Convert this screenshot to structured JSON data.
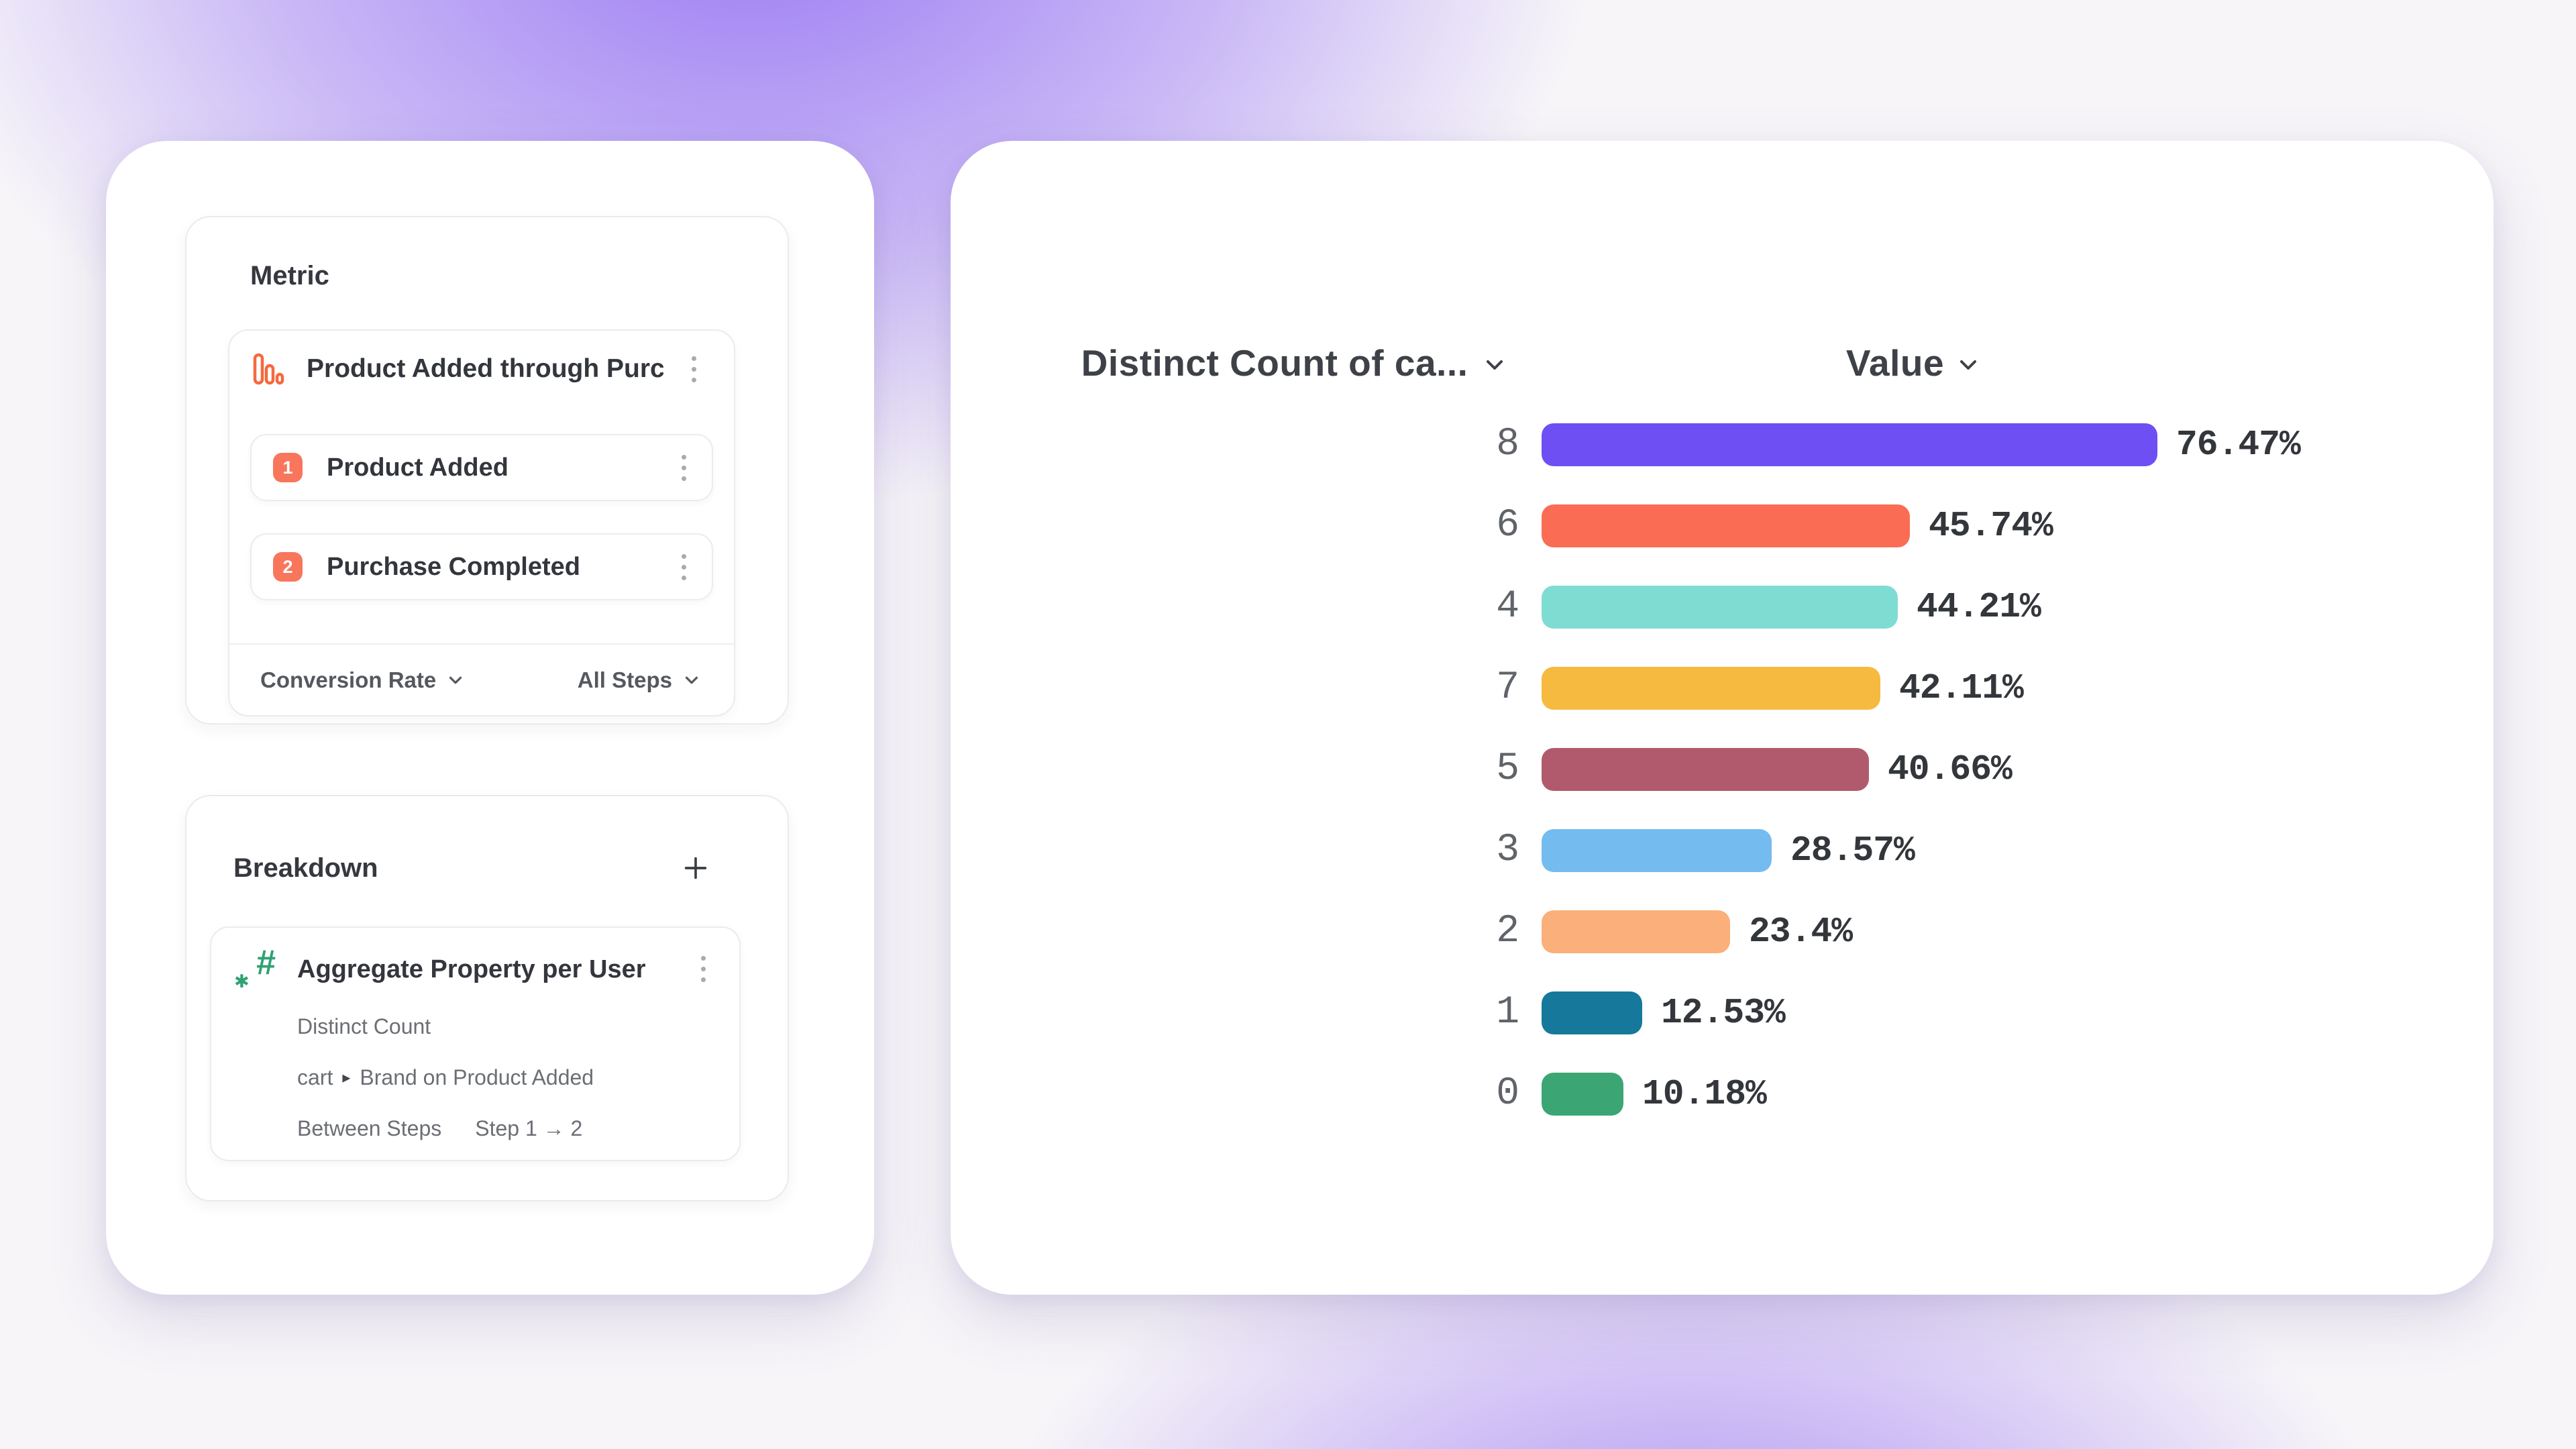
{
  "left_panel": {
    "metric": {
      "title": "Metric",
      "item": {
        "icon": "funnel-bars-icon",
        "name": "Product Added through Purcha...",
        "steps": [
          {
            "index": "1",
            "label": "Product Added"
          },
          {
            "index": "2",
            "label": "Purchase Completed"
          }
        ],
        "footer": {
          "conversion_label": "Conversion Rate",
          "steps_label": "All Steps"
        }
      }
    },
    "breakdown": {
      "title": "Breakdown",
      "item": {
        "icon": "numeric-property-icon",
        "name": "Aggregate Property per User",
        "aggregation": "Distinct Count",
        "property_prefix": "cart",
        "property_separator": "▸",
        "property_suffix": "Brand on Product Added",
        "scope_label": "Between Steps",
        "scope_value": "Step 1 → 2"
      }
    }
  },
  "chart_data": {
    "type": "bar",
    "orientation": "horizontal",
    "column_headers": {
      "category": "Distinct Count of ca...",
      "value": "Value"
    },
    "categories": [
      "8",
      "6",
      "4",
      "7",
      "5",
      "3",
      "2",
      "1",
      "0"
    ],
    "values": [
      76.47,
      45.74,
      44.21,
      42.11,
      40.66,
      28.57,
      23.4,
      12.53,
      10.18
    ],
    "value_labels": [
      "76.47%",
      "45.74%",
      "44.21%",
      "42.11%",
      "40.66%",
      "28.57%",
      "23.4%",
      "12.53%",
      "10.18%"
    ],
    "bar_colors": [
      "#6E4FF3",
      "#FB6C55",
      "#7FDCD3",
      "#F6BA40",
      "#B25A6D",
      "#74BCF0",
      "#FBAF7A",
      "#16789A",
      "#3BA674"
    ],
    "xlim": [
      0,
      100
    ],
    "grid": "off",
    "legend": "none"
  },
  "colors": {
    "step_badge_orange": "#F8765C",
    "funnel_icon_orange": "#F5693F",
    "property_icon_green": "#2FA273"
  }
}
